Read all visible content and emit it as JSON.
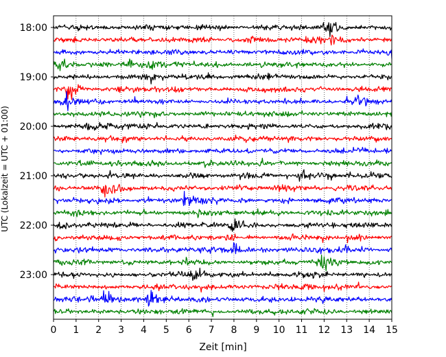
{
  "chart_data": {
    "type": "line",
    "title": "",
    "xlabel": "Zeit  [min]",
    "ylabel": "UTC (Lokalzeit = UTC + 01:00)",
    "xlim": [
      0,
      15
    ],
    "xticks": [
      0,
      1,
      2,
      3,
      4,
      5,
      6,
      7,
      8,
      9,
      10,
      11,
      12,
      13,
      14,
      15
    ],
    "ytick_labels": [
      "18:00",
      "19:00",
      "20:00",
      "21:00",
      "22:00",
      "23:00"
    ],
    "row_start": "18:00",
    "row_interval_min": 15,
    "row_count": 24,
    "row_colors": [
      "#000000",
      "#ff0000",
      "#0000ff",
      "#008000"
    ],
    "grid": "vertical dotted",
    "events": [
      {
        "row": 0,
        "t": 12.2,
        "amp": 1.3
      },
      {
        "row": 1,
        "t": 12.3,
        "amp": 1.0
      },
      {
        "row": 2,
        "t": 14.9,
        "amp": 1.0
      },
      {
        "row": 3,
        "t": 0.1,
        "amp": 1.0
      },
      {
        "row": 3,
        "t": 3.3,
        "amp": 0.9
      },
      {
        "row": 3,
        "t": 4.3,
        "amp": 0.9
      },
      {
        "row": 5,
        "t": 0.6,
        "amp": 1.6
      },
      {
        "row": 6,
        "t": 0.5,
        "amp": 1.6
      },
      {
        "row": 6,
        "t": 13.4,
        "amp": 0.9
      },
      {
        "row": 8,
        "t": 1.5,
        "amp": 1.0
      },
      {
        "row": 12,
        "t": 10.9,
        "amp": 0.9
      },
      {
        "row": 13,
        "t": 2.2,
        "amp": 0.9
      },
      {
        "row": 13,
        "t": 9.8,
        "amp": 1.0
      },
      {
        "row": 14,
        "t": 5.8,
        "amp": 1.0
      },
      {
        "row": 16,
        "t": 7.9,
        "amp": 1.1
      },
      {
        "row": 18,
        "t": 8.0,
        "amp": 1.5
      },
      {
        "row": 19,
        "t": 11.9,
        "amp": 1.3
      },
      {
        "row": 20,
        "t": 6.2,
        "amp": 0.9
      },
      {
        "row": 22,
        "t": 2.2,
        "amp": 1.3
      },
      {
        "row": 22,
        "t": 4.2,
        "amp": 1.1
      }
    ]
  }
}
